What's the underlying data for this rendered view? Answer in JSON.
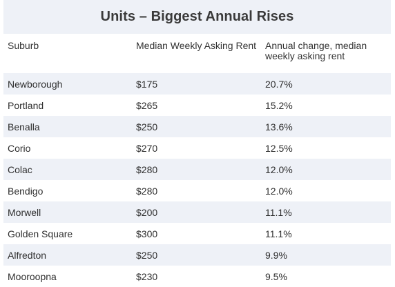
{
  "table": {
    "title": "Units – Biggest Annual Rises",
    "headers": [
      "Suburb",
      "Median Weekly Asking Rent",
      "Annual change, median weekly asking rent"
    ],
    "rows": [
      [
        "Newborough",
        "$175",
        "20.7%"
      ],
      [
        "Portland",
        "$265",
        "15.2%"
      ],
      [
        "Benalla",
        "$250",
        "13.6%"
      ],
      [
        "Corio",
        "$270",
        "12.5%"
      ],
      [
        "Colac",
        "$280",
        "12.0%"
      ],
      [
        "Bendigo",
        "$280",
        "12.0%"
      ],
      [
        "Morwell",
        "$200",
        "11.1%"
      ],
      [
        "Golden Square",
        "$300",
        "11.1%"
      ],
      [
        "Alfredton",
        "$250",
        "9.9%"
      ],
      [
        "Mooroopna",
        "$230",
        "9.5%"
      ]
    ]
  },
  "colors": {
    "stripe": "#eef1f7",
    "text": "#2f2f2f"
  }
}
